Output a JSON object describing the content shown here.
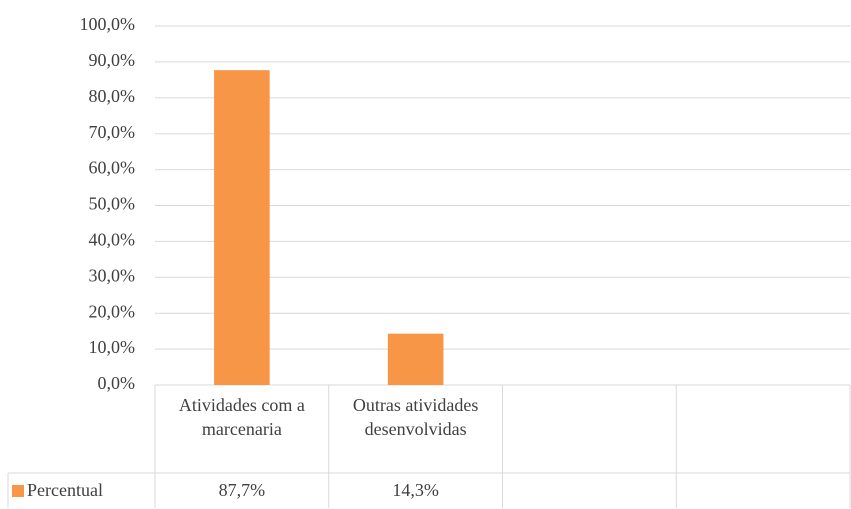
{
  "chart_data": {
    "type": "bar",
    "categories": [
      "Atividades com a marcenaria",
      "Outras atividades desenvolvidas",
      null,
      null
    ],
    "series": [
      {
        "name": "Percentual",
        "color": "#f79646",
        "values": [
          87.7,
          14.3,
          null,
          null
        ],
        "value_labels": [
          "87,7%",
          "14,3%",
          null,
          null
        ]
      }
    ],
    "ylim": [
      0,
      100
    ],
    "yticks": [
      {
        "value": 0,
        "label": "0,0%"
      },
      {
        "value": 10,
        "label": "10,0%"
      },
      {
        "value": 20,
        "label": "20,0%"
      },
      {
        "value": 30,
        "label": "30,0%"
      },
      {
        "value": 40,
        "label": "40,0%"
      },
      {
        "value": 50,
        "label": "50,0%"
      },
      {
        "value": 60,
        "label": "60,0%"
      },
      {
        "value": 70,
        "label": "70,0%"
      },
      {
        "value": 80,
        "label": "80,0%"
      },
      {
        "value": 90,
        "label": "90,0%"
      },
      {
        "value": 100,
        "label": "100,0%"
      }
    ],
    "grid": true
  }
}
